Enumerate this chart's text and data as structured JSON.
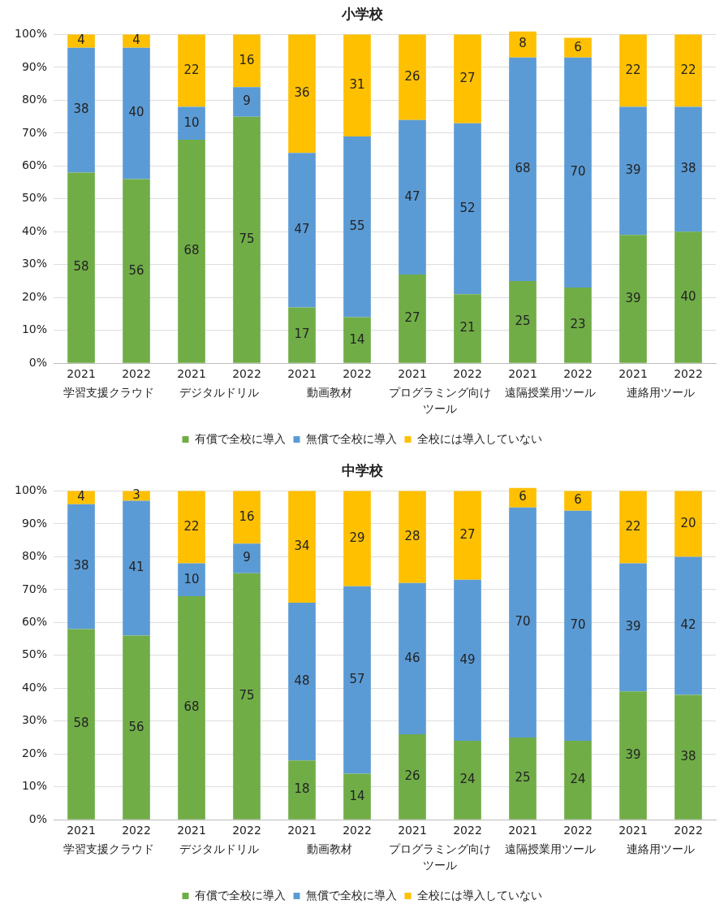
{
  "chart_data": [
    {
      "type": "bar",
      "title": "小学校",
      "stacked": true,
      "data_labels": true,
      "grid": "y",
      "legend": "bottom",
      "categories": [
        "2021",
        "2022",
        "2021",
        "2022",
        "2021",
        "2022",
        "2021",
        "2022",
        "2021",
        "2022",
        "2021",
        "2022"
      ],
      "annotations": [
        "学習支援クラウド",
        "デジタルドリル",
        "動画教材",
        "プログラミング向けツール",
        "遠隔授業用ツール",
        "連絡用ツール"
      ],
      "ylim": [
        0,
        101
      ],
      "yticks": [
        {
          "value": 0,
          "label": "0%"
        },
        {
          "value": 10,
          "label": "10%"
        },
        {
          "value": 20,
          "label": "20%"
        },
        {
          "value": 30,
          "label": "30%"
        },
        {
          "value": 40,
          "label": "40%"
        },
        {
          "value": 50,
          "label": "50%"
        },
        {
          "value": 60,
          "label": "60%"
        },
        {
          "value": 70,
          "label": "70%"
        },
        {
          "value": 80,
          "label": "80%"
        },
        {
          "value": 90,
          "label": "90%"
        },
        {
          "value": 100,
          "label": "100%"
        }
      ],
      "series": [
        {
          "name": "有償で全校に導入",
          "color": "#70ad47",
          "values": [
            58,
            56,
            68,
            75,
            17,
            14,
            27,
            21,
            25,
            23,
            39,
            40
          ]
        },
        {
          "name": "無償で全校に導入",
          "color": "#5b9bd5",
          "values": [
            38,
            40,
            10,
            9,
            47,
            55,
            47,
            52,
            68,
            70,
            39,
            38
          ]
        },
        {
          "name": "全校には導入していない",
          "color": "#ffc000",
          "values": [
            4,
            4,
            22,
            16,
            36,
            31,
            26,
            27,
            8,
            6,
            22,
            22
          ]
        }
      ]
    },
    {
      "type": "bar",
      "title": "中学校",
      "stacked": true,
      "data_labels": true,
      "grid": "y",
      "legend": "bottom",
      "categories": [
        "2021",
        "2022",
        "2021",
        "2022",
        "2021",
        "2022",
        "2021",
        "2022",
        "2021",
        "2022",
        "2021",
        "2022"
      ],
      "annotations": [
        "学習支援クラウド",
        "デジタルドリル",
        "動画教材",
        "プログラミング向けツール",
        "遠隔授業用ツール",
        "連絡用ツール"
      ],
      "ylim": [
        0,
        101
      ],
      "yticks": [
        {
          "value": 0,
          "label": "0%"
        },
        {
          "value": 10,
          "label": "10%"
        },
        {
          "value": 20,
          "label": "20%"
        },
        {
          "value": 30,
          "label": "30%"
        },
        {
          "value": 40,
          "label": "40%"
        },
        {
          "value": 50,
          "label": "50%"
        },
        {
          "value": 60,
          "label": "60%"
        },
        {
          "value": 70,
          "label": "70%"
        },
        {
          "value": 80,
          "label": "80%"
        },
        {
          "value": 90,
          "label": "90%"
        },
        {
          "value": 100,
          "label": "100%"
        }
      ],
      "series": [
        {
          "name": "有償で全校に導入",
          "color": "#70ad47",
          "values": [
            58,
            56,
            68,
            75,
            18,
            14,
            26,
            24,
            25,
            24,
            39,
            38
          ]
        },
        {
          "name": "無償で全校に導入",
          "color": "#5b9bd5",
          "values": [
            38,
            41,
            10,
            9,
            48,
            57,
            46,
            49,
            70,
            70,
            39,
            42
          ]
        },
        {
          "name": "全校には導入していない",
          "color": "#ffc000",
          "values": [
            4,
            3,
            22,
            16,
            34,
            29,
            28,
            27,
            6,
            6,
            22,
            20
          ]
        }
      ]
    }
  ]
}
